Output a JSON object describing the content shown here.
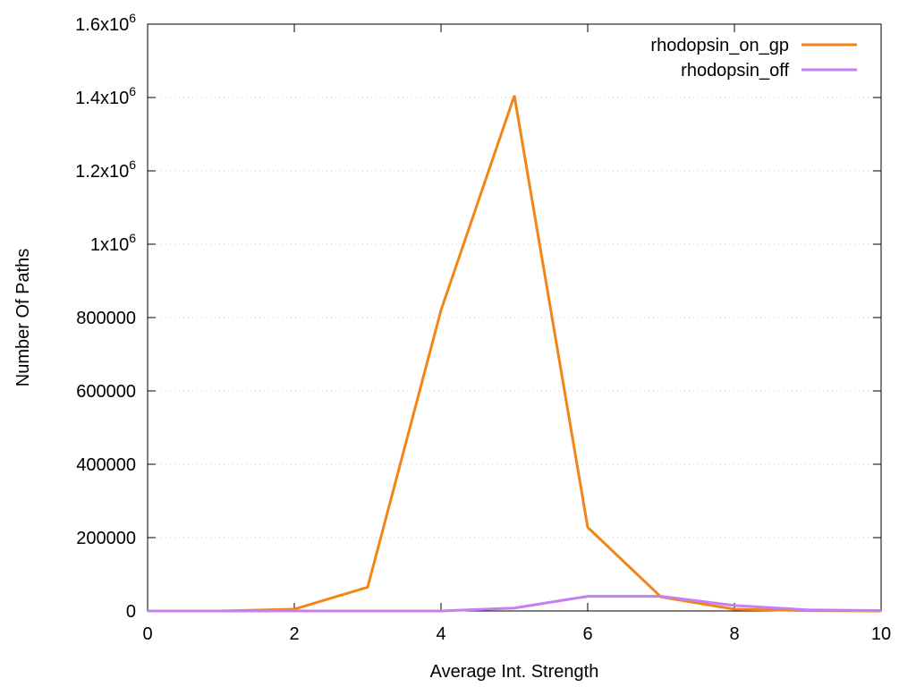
{
  "chart_data": {
    "type": "line",
    "xlabel": "Average Int. Strength",
    "ylabel": "Number Of Paths",
    "xlim": [
      0,
      10
    ],
    "ylim": [
      0,
      1600000
    ],
    "x_ticks": [
      0,
      2,
      4,
      6,
      8,
      10
    ],
    "x_tick_labels": [
      "0",
      "2",
      "4",
      "6",
      "8",
      "10"
    ],
    "y_ticks": [
      0,
      200000,
      400000,
      600000,
      800000,
      1000000,
      1200000,
      1400000,
      1600000
    ],
    "y_tick_labels": [
      {
        "base": "0",
        "exp": ""
      },
      {
        "base": "200000",
        "exp": ""
      },
      {
        "base": "400000",
        "exp": ""
      },
      {
        "base": "600000",
        "exp": ""
      },
      {
        "base": "800000",
        "exp": ""
      },
      {
        "base": "1x10",
        "exp": "6"
      },
      {
        "base": "1.2x10",
        "exp": "6"
      },
      {
        "base": "1.4x10",
        "exp": "6"
      },
      {
        "base": "1.6x10",
        "exp": "6"
      }
    ],
    "grid": "horizontal-dotted",
    "legend_position": "top-right",
    "series": [
      {
        "name": "rhodopsin_on_gp",
        "color": "#f28518",
        "x": [
          0,
          1,
          2,
          3,
          4,
          5,
          6,
          7,
          8,
          9,
          10
        ],
        "y": [
          0,
          0,
          5000,
          65000,
          820000,
          1405000,
          228000,
          38000,
          5000,
          1000,
          0
        ]
      },
      {
        "name": "rhodopsin_off",
        "color": "#c67ff0",
        "x": [
          0,
          1,
          2,
          3,
          4,
          5,
          6,
          7,
          8,
          9,
          10
        ],
        "y": [
          0,
          0,
          0,
          0,
          0,
          8000,
          40000,
          40000,
          15000,
          3000,
          1000
        ]
      }
    ]
  }
}
